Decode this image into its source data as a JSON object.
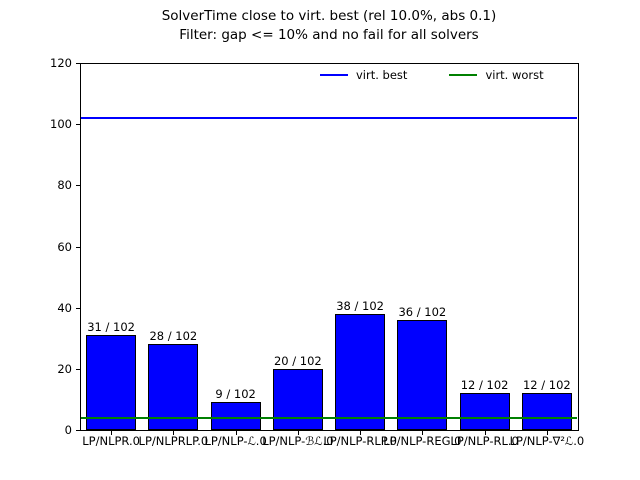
{
  "title": {
    "line1": "SolverTime close to virt. best (rel 10.0%, abs 0.1)",
    "line2": "Filter: gap <= 10% and no fail for all solvers"
  },
  "legend": {
    "items": [
      {
        "label": "virt. best",
        "color": "#0000ff"
      },
      {
        "label": "virt. worst",
        "color": "#008000"
      }
    ]
  },
  "colors": {
    "bar": "#0000ff",
    "bar_edge": "#000000",
    "virt_best_line": "#0000ff",
    "virt_worst_line": "#008000",
    "axis": "#000000",
    "text": "#000000",
    "background": "#ffffff"
  },
  "chart_data": {
    "type": "bar",
    "title": "SolverTime close to virt. best (rel 10.0%, abs 0.1)",
    "subtitle": "Filter: gap <= 10% and no fail for all solvers",
    "categories": [
      "LP/NLPR.0",
      "LP/NLPRLP.0",
      "LP/NLP-ℒ.0",
      "LP/NLP-ℬℒ.0",
      "LP/NLP-RLP.0",
      "LP/NLP-REG.0",
      "LP/NLP-RL.0",
      "LP/NLP-∇²ℒ.0"
    ],
    "values": [
      31,
      28,
      9,
      20,
      38,
      36,
      12,
      12
    ],
    "bar_labels": [
      "31 / 102",
      "28 / 102",
      "9 / 102",
      "20 / 102",
      "38 / 102",
      "36 / 102",
      "12 / 102",
      "12 / 102"
    ],
    "instances_total": 102,
    "xlabel": "",
    "ylabel": "",
    "ylim": [
      0,
      120
    ],
    "yticks": [
      0,
      20,
      40,
      60,
      80,
      100,
      120
    ],
    "hlines": [
      {
        "name": "virt. best",
        "value": 102,
        "color": "#0000ff"
      },
      {
        "name": "virt. worst",
        "value": 4,
        "color": "#008000"
      }
    ],
    "grid": false,
    "legend_position": "upper center-right, frameless, horizontal"
  }
}
